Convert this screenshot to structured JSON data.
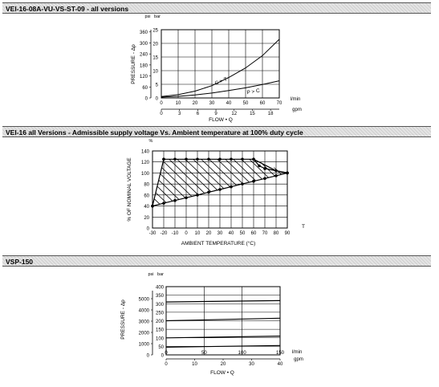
{
  "sections": [
    {
      "title": "VEI-16-08A-VU-VS-ST-09 - all versions"
    },
    {
      "title": "VEI-16 all Versions - Admissible supply voltage Vs. Ambient temperature at 100% duty cycle"
    },
    {
      "title": "VSP-150"
    }
  ],
  "chart_data": [
    {
      "type": "line",
      "ylabel": "PRESSURE - Δp",
      "xlabel": "FLOW • Q",
      "y_unit_bar": "bar",
      "y_unit_psi": "psi",
      "x_unit_lmin": "l/min",
      "x_unit_gpm": "gpm",
      "ylim": [
        0,
        25
      ],
      "xlim": [
        0,
        70
      ],
      "y_ticks_bar": [
        "0",
        "5",
        "10",
        "15",
        "20",
        "25"
      ],
      "y_ticks_psi": [
        "0",
        "60",
        "120",
        "180",
        "240",
        "300",
        "360"
      ],
      "x_ticks_lmin": [
        "0",
        "10",
        "20",
        "30",
        "40",
        "50",
        "60",
        "70"
      ],
      "x_ticks_gpm": [
        "0",
        "3",
        "6",
        "9",
        "12",
        "15",
        "18"
      ],
      "grid": true,
      "series": [
        {
          "name": "C > T",
          "x": [
            0,
            10,
            20,
            30,
            40,
            50,
            60,
            70
          ],
          "y": [
            0.5,
            1.2,
            2.5,
            4.5,
            7.5,
            11,
            15.5,
            21.5
          ]
        },
        {
          "name": "P > C",
          "x": [
            0,
            10,
            20,
            30,
            40,
            50,
            60,
            70
          ],
          "y": [
            0.3,
            0.6,
            1.1,
            1.8,
            2.7,
            3.7,
            4.9,
            6.3
          ]
        }
      ]
    },
    {
      "type": "area",
      "ylabel": "% OF NOMINAL VOLTAGE",
      "xlabel": "AMBIENT TEMPERATURE (°C)",
      "y_unit": "%",
      "x_unit": "T",
      "ylim": [
        0,
        140
      ],
      "xlim": [
        -30,
        90
      ],
      "y_ticks": [
        "0",
        "20",
        "40",
        "60",
        "80",
        "100",
        "120",
        "140"
      ],
      "x_ticks": [
        "-30",
        "-20",
        "-10",
        "0",
        "10",
        "20",
        "30",
        "40",
        "50",
        "60",
        "70",
        "80",
        "90"
      ],
      "grid": true,
      "upper": {
        "x": [
          -20,
          -10,
          0,
          10,
          20,
          30,
          40,
          50,
          60,
          65,
          70,
          90
        ],
        "y": [
          125,
          125,
          125,
          125,
          125,
          125,
          125,
          125,
          125,
          113,
          108,
          100
        ]
      },
      "upper_extra": {
        "x": [
          60,
          80,
          90
        ],
        "y": [
          125,
          104,
          100
        ]
      },
      "lower": {
        "x": [
          -30,
          -20,
          -10,
          0,
          10,
          20,
          30,
          40,
          50,
          60,
          70,
          80,
          90
        ],
        "y": [
          40,
          45,
          50,
          55,
          60,
          65,
          70,
          75,
          80,
          85,
          90,
          95,
          100
        ]
      },
      "left_edge": {
        "x": [
          -30,
          -20
        ],
        "y": [
          40,
          125
        ]
      }
    },
    {
      "type": "line",
      "ylabel": "PRESSURE - Δp",
      "xlabel": "FLOW • Q",
      "y_unit_bar": "bar",
      "y_unit_psi": "psi",
      "x_unit_lmin": "l/min",
      "x_unit_gpm": "gpm",
      "ylim": [
        0,
        400
      ],
      "xlim": [
        0,
        150
      ],
      "y_ticks_bar": [
        "0",
        "50",
        "100",
        "150",
        "200",
        "250",
        "300",
        "350",
        "400"
      ],
      "y_ticks_psi": [
        "0",
        "1000",
        "2000",
        "3000",
        "4000",
        "5000"
      ],
      "x_ticks_lmin": [
        "0",
        "50",
        "100",
        "150"
      ],
      "x_ticks_gpm": [
        "0",
        "10",
        "20",
        "30",
        "40"
      ],
      "grid": true,
      "series": [
        {
          "x": [
            0,
            150
          ],
          "y": [
            310,
            318
          ]
        },
        {
          "x": [
            0,
            150
          ],
          "y": [
            200,
            215
          ]
        },
        {
          "x": [
            0,
            150
          ],
          "y": [
            100,
            110
          ]
        },
        {
          "x": [
            0,
            150
          ],
          "y": [
            45,
            55
          ]
        }
      ]
    }
  ]
}
